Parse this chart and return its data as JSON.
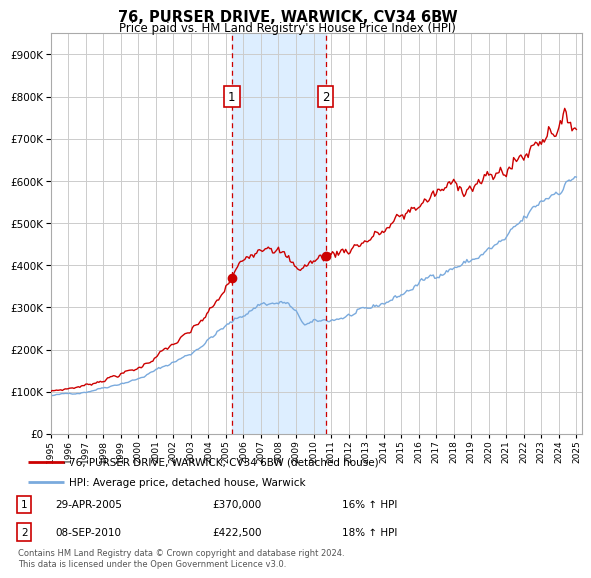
{
  "title": "76, PURSER DRIVE, WARWICK, CV34 6BW",
  "subtitle": "Price paid vs. HM Land Registry's House Price Index (HPI)",
  "ylim": [
    0,
    950000
  ],
  "yticks": [
    0,
    100000,
    200000,
    300000,
    400000,
    500000,
    600000,
    700000,
    800000,
    900000
  ],
  "xstart": 1995,
  "xend": 2025,
  "transaction1_date": "29-APR-2005",
  "transaction1_price": 370000,
  "transaction1_hpi": "16% ↑ HPI",
  "transaction1_label": "1",
  "transaction1_x": 2005.33,
  "transaction2_date": "08-SEP-2010",
  "transaction2_price": 422500,
  "transaction2_hpi": "18% ↑ HPI",
  "transaction2_label": "2",
  "transaction2_x": 2010.69,
  "line1_label": "76, PURSER DRIVE, WARWICK, CV34 6BW (detached house)",
  "line1_color": "#cc0000",
  "line2_label": "HPI: Average price, detached house, Warwick",
  "line2_color": "#7aaadd",
  "shade_color": "#ddeeff",
  "vline_color": "#cc0000",
  "footer": "Contains HM Land Registry data © Crown copyright and database right 2024.\nThis data is licensed under the Open Government Licence v3.0.",
  "background_color": "#ffffff",
  "grid_color": "#cccccc"
}
